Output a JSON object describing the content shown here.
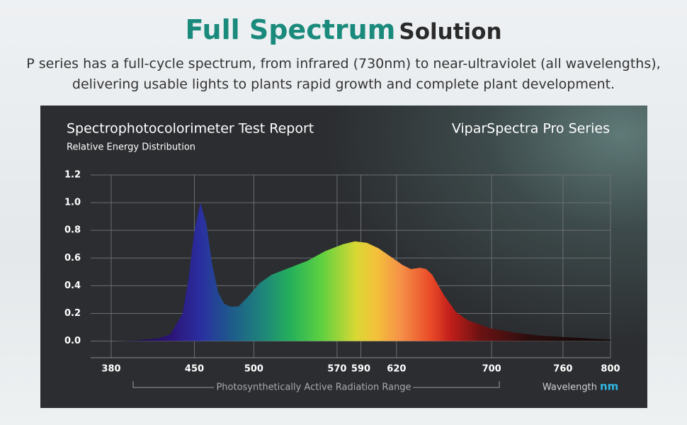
{
  "header": {
    "title_highlight": "Full Spectrum",
    "title_rest": "Solution",
    "description": [
      "P series has a full-cycle spectrum, from infrared (730nm) to near-ultraviolet (all wavelengths),",
      "delivering usable lights to plants rapid growth and complete plant development."
    ]
  },
  "chart_data": {
    "type": "area",
    "title": "Spectrophotocolorimeter Test Report",
    "subtitle": "Relative Energy Distribution",
    "brand": "ViparSpectra Pro Series",
    "annotation": "Photosynthetically Active Radiation Range",
    "xlabel": "Wavelength",
    "xunit": "nm",
    "x": [
      380,
      400,
      420,
      430,
      440,
      445,
      450,
      455,
      460,
      465,
      470,
      475,
      480,
      487,
      495,
      505,
      515,
      530,
      545,
      560,
      575,
      585,
      595,
      605,
      615,
      625,
      632,
      640,
      645,
      650,
      660,
      670,
      680,
      700,
      720,
      740,
      760,
      780,
      800
    ],
    "values": [
      0,
      0.005,
      0.02,
      0.05,
      0.2,
      0.45,
      0.8,
      1.0,
      0.85,
      0.55,
      0.35,
      0.27,
      0.25,
      0.25,
      0.32,
      0.42,
      0.48,
      0.53,
      0.58,
      0.65,
      0.7,
      0.72,
      0.71,
      0.67,
      0.61,
      0.55,
      0.52,
      0.53,
      0.52,
      0.48,
      0.33,
      0.21,
      0.15,
      0.09,
      0.06,
      0.04,
      0.03,
      0.02,
      0.01
    ],
    "xlim": [
      380,
      800
    ],
    "xticks": [
      380,
      450,
      500,
      570,
      590,
      620,
      700,
      760,
      800
    ],
    "ylim": [
      -0.12,
      1.2
    ],
    "yticks": [
      {
        "value": 0,
        "label": "0.0"
      },
      0.2,
      0.4,
      0.6,
      0.8,
      {
        "value": 1,
        "label": "1.0"
      },
      1.2
    ],
    "grid": true
  }
}
